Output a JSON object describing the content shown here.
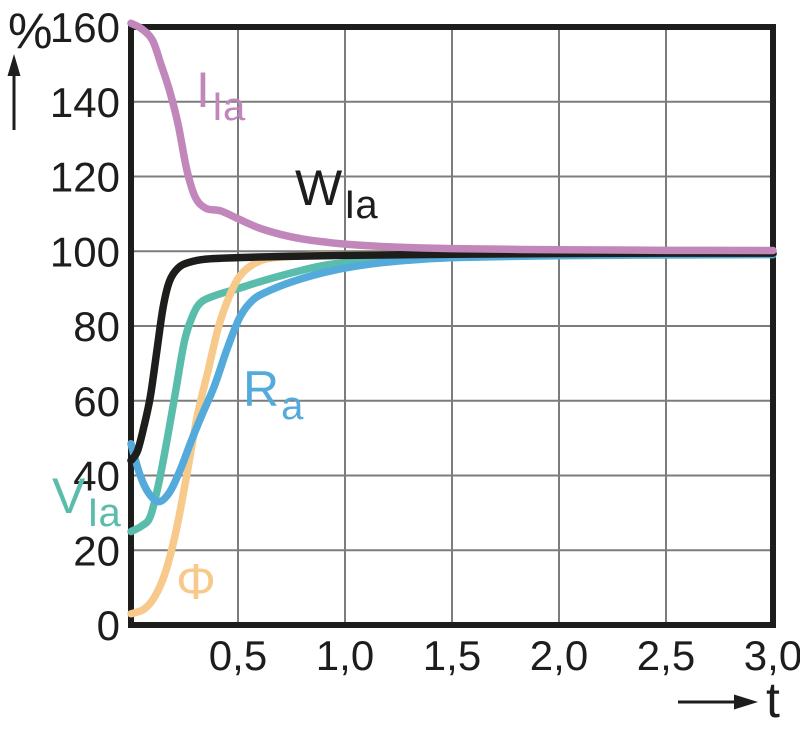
{
  "figure": {
    "y_axis_unit": "%",
    "x_axis_label": "t"
  },
  "chart_data": {
    "type": "line",
    "title": "",
    "xlabel": "t",
    "ylabel": "%",
    "xlim": [
      0,
      3.0
    ],
    "ylim": [
      0,
      160
    ],
    "grid": true,
    "legend_position": "labels-on-curves",
    "x_tick_labels": [
      "0,5",
      "1,0",
      "1,5",
      "2,0",
      "2,5",
      "3,0"
    ],
    "x_tick_values": [
      0.5,
      1.0,
      1.5,
      2.0,
      2.5,
      3.0
    ],
    "y_tick_labels": [
      "160",
      "140",
      "120",
      "100",
      "80",
      "60",
      "40",
      "20",
      "0"
    ],
    "y_tick_values": [
      160,
      140,
      120,
      100,
      80,
      60,
      40,
      20,
      0
    ],
    "series": [
      {
        "name": "V_Ia",
        "label_main": "V",
        "label_sub": "Ia",
        "color": "#5abdab",
        "points": [
          [
            0,
            25
          ],
          [
            0.05,
            26.5
          ],
          [
            0.09,
            29
          ],
          [
            0.13,
            38
          ],
          [
            0.17,
            50
          ],
          [
            0.21,
            63
          ],
          [
            0.25,
            76
          ],
          [
            0.29,
            83
          ],
          [
            0.33,
            86.5
          ],
          [
            0.4,
            88.3
          ],
          [
            0.5,
            90
          ],
          [
            0.6,
            91.8
          ],
          [
            0.75,
            94.2
          ],
          [
            0.9,
            96.2
          ],
          [
            1.05,
            97.2
          ],
          [
            1.25,
            97.9
          ],
          [
            1.5,
            98.3
          ],
          [
            2.0,
            98.8
          ],
          [
            2.5,
            99
          ],
          [
            3.0,
            99.1
          ]
        ]
      },
      {
        "name": "Phi",
        "label_main": "Φ",
        "label_sub": "",
        "color": "#f7c98b",
        "points": [
          [
            0,
            3
          ],
          [
            0.06,
            4.2
          ],
          [
            0.11,
            7.5
          ],
          [
            0.16,
            14
          ],
          [
            0.21,
            25
          ],
          [
            0.26,
            40
          ],
          [
            0.31,
            56
          ],
          [
            0.36,
            68
          ],
          [
            0.41,
            80
          ],
          [
            0.46,
            88
          ],
          [
            0.51,
            93.5
          ],
          [
            0.58,
            96.8
          ],
          [
            0.66,
            98.2
          ],
          [
            0.8,
            98.8
          ],
          [
            1.0,
            99
          ],
          [
            1.5,
            99.2
          ],
          [
            2.0,
            99.3
          ],
          [
            3.0,
            99.4
          ]
        ]
      },
      {
        "name": "R_a",
        "label_main": "R",
        "label_sub": "a",
        "color": "#54abdb",
        "points": [
          [
            0,
            48.5
          ],
          [
            0.04,
            40.5
          ],
          [
            0.08,
            35.5
          ],
          [
            0.13,
            33
          ],
          [
            0.18,
            35.5
          ],
          [
            0.23,
            41.5
          ],
          [
            0.28,
            49
          ],
          [
            0.33,
            56
          ],
          [
            0.39,
            64
          ],
          [
            0.45,
            74
          ],
          [
            0.51,
            82.5
          ],
          [
            0.57,
            87
          ],
          [
            0.64,
            89.3
          ],
          [
            0.75,
            91.8
          ],
          [
            0.9,
            94.3
          ],
          [
            1.05,
            96
          ],
          [
            1.25,
            97.4
          ],
          [
            1.5,
            98.3
          ],
          [
            2.0,
            98.9
          ],
          [
            2.5,
            99.1
          ],
          [
            3.0,
            99.2
          ]
        ]
      },
      {
        "name": "W_Ia",
        "label_main": "W",
        "label_sub": "Ia",
        "color": "#1d1d1b",
        "points": [
          [
            0,
            44
          ],
          [
            0.03,
            46.5
          ],
          [
            0.06,
            53
          ],
          [
            0.09,
            61
          ],
          [
            0.12,
            73
          ],
          [
            0.15,
            85
          ],
          [
            0.18,
            92
          ],
          [
            0.22,
            95.5
          ],
          [
            0.27,
            97
          ],
          [
            0.35,
            97.9
          ],
          [
            0.5,
            98.3
          ],
          [
            0.7,
            98.6
          ],
          [
            1.0,
            98.9
          ],
          [
            1.5,
            99.2
          ],
          [
            2.0,
            99.4
          ],
          [
            2.5,
            99.5
          ],
          [
            3.0,
            99.5
          ]
        ]
      },
      {
        "name": "I_Ia",
        "label_main": "I",
        "label_sub": "Ia",
        "color": "#c287ba",
        "points": [
          [
            0,
            161
          ],
          [
            0.05,
            159.5
          ],
          [
            0.1,
            156.5
          ],
          [
            0.14,
            150
          ],
          [
            0.18,
            143
          ],
          [
            0.22,
            134
          ],
          [
            0.26,
            122
          ],
          [
            0.3,
            114.5
          ],
          [
            0.35,
            111.5
          ],
          [
            0.42,
            110.8
          ],
          [
            0.5,
            108.7
          ],
          [
            0.6,
            106.2
          ],
          [
            0.7,
            104.5
          ],
          [
            0.8,
            103.3
          ],
          [
            0.9,
            102.5
          ],
          [
            1.0,
            101.9
          ],
          [
            1.2,
            101.2
          ],
          [
            1.5,
            100.7
          ],
          [
            2.0,
            100.4
          ],
          [
            2.5,
            100.25
          ],
          [
            3.0,
            100.2
          ]
        ]
      }
    ],
    "style": {
      "frame_color": "#1d1d1b",
      "grid_color": "#7c7c7c",
      "text_color": "#1d1d1b",
      "background": "#ffffff"
    }
  }
}
